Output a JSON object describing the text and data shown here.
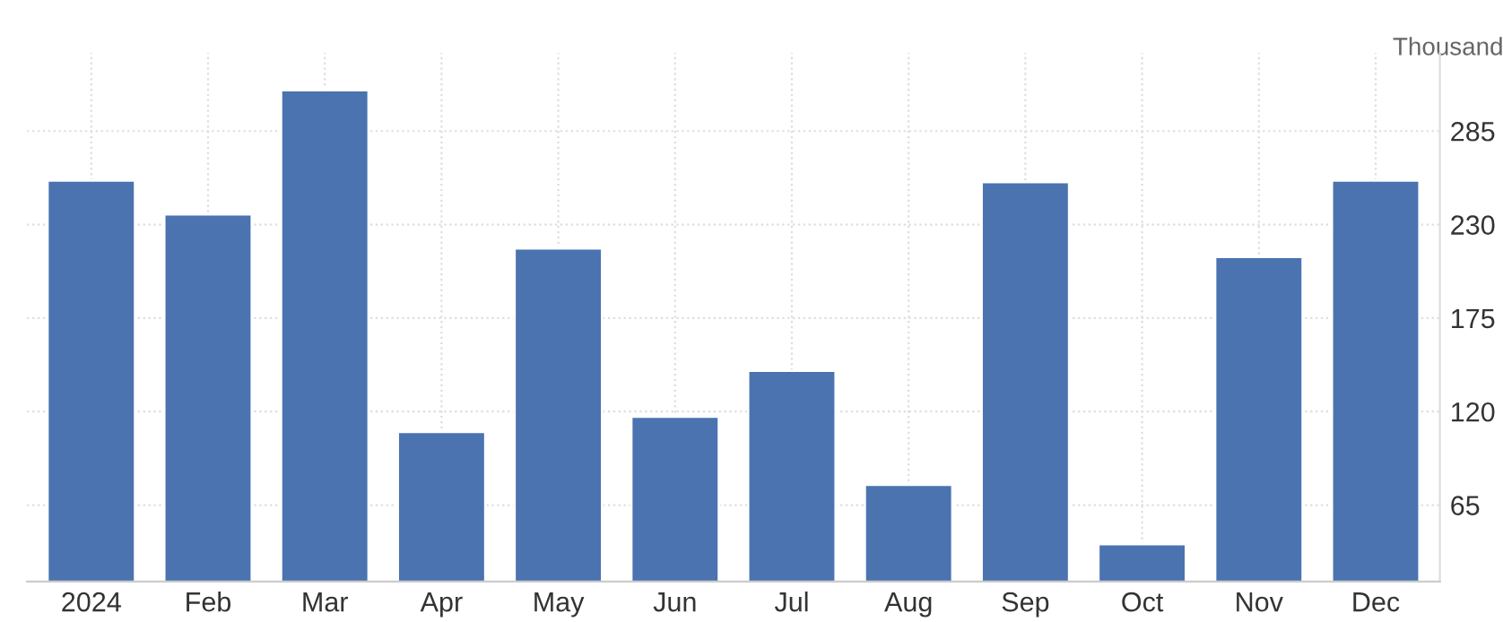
{
  "chart_data": {
    "type": "bar",
    "ylabel": "Thousand",
    "categories": [
      "2024",
      "Feb",
      "Mar",
      "Apr",
      "May",
      "Jun",
      "Jul",
      "Aug",
      "Sep",
      "Oct",
      "Nov",
      "Dec"
    ],
    "values": [
      256,
      236,
      309,
      108,
      216,
      117,
      144,
      77,
      255,
      42,
      211,
      256
    ],
    "color": "#4a73b0",
    "ylim": [
      20,
      331
    ],
    "yticks": [
      65,
      120,
      175,
      230,
      285
    ],
    "grid": true
  }
}
